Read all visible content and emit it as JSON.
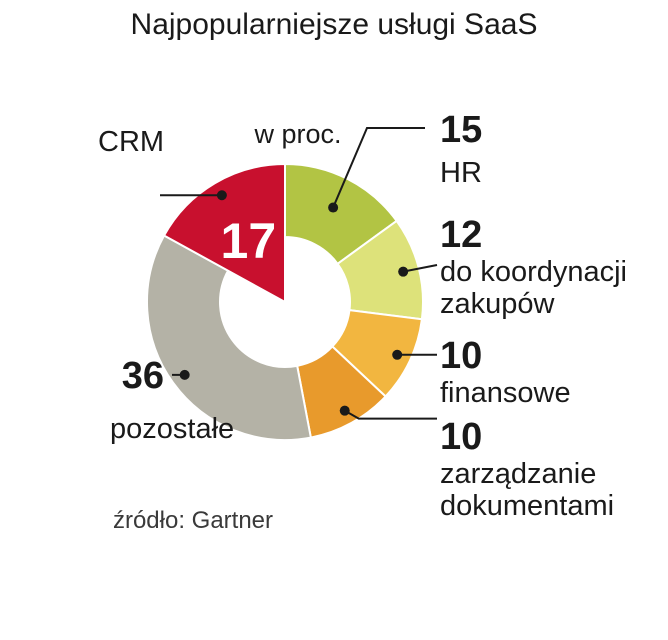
{
  "chart_data": {
    "type": "pie",
    "title": "Najpopularniejsze usługi SaaS",
    "unit_label": "w proc.",
    "source": "źródło: Gartner",
    "slices": [
      {
        "value": 15,
        "value_label": "15",
        "label_lines": [
          "HR"
        ],
        "color": "#b2c444"
      },
      {
        "value": 12,
        "value_label": "12",
        "label_lines": [
          "do koordynacji",
          "zakupów"
        ],
        "color": "#dde27a"
      },
      {
        "value": 10,
        "value_label": "10",
        "label_lines": [
          "finansowe"
        ],
        "color": "#f2b640"
      },
      {
        "value": 10,
        "value_label": "10",
        "label_lines": [
          "zarządzanie",
          "dokumentami"
        ],
        "color": "#e89a2c"
      },
      {
        "value": 36,
        "value_label": "36",
        "label_lines": [
          "pozostałe"
        ],
        "color": "#b4b2a6"
      },
      {
        "value": 17,
        "value_label": "17",
        "label_lines": [
          "CRM"
        ],
        "color": "#c8102e"
      }
    ]
  }
}
